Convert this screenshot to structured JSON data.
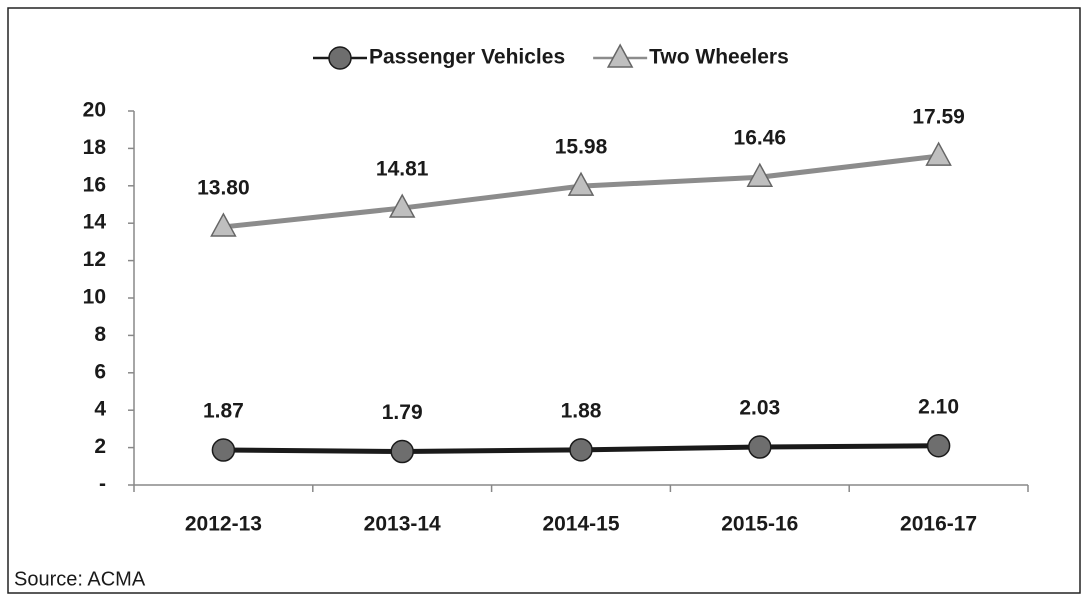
{
  "chart_data": {
    "type": "line",
    "categories": [
      "2012-13",
      "2013-14",
      "2014-15",
      "2015-16",
      "2016-17"
    ],
    "series": [
      {
        "name": "Passenger Vehicles",
        "color": "#1a1a1a",
        "marker_color": "#6e6e6e",
        "marker": "circle",
        "values": [
          1.87,
          1.79,
          1.88,
          2.03,
          2.1
        ],
        "value_labels": [
          "1.87",
          "1.79",
          "1.88",
          "2.03",
          "2.10"
        ]
      },
      {
        "name": "Two Wheelers",
        "color": "#8c8c8c",
        "marker_color": "#bfbfbf",
        "marker": "triangle",
        "values": [
          13.8,
          14.81,
          15.98,
          16.46,
          17.59
        ],
        "value_labels": [
          "13.80",
          "14.81",
          "15.98",
          "16.46",
          "17.59"
        ]
      }
    ],
    "ylim": [
      0,
      20
    ],
    "yticks": [
      {
        "value": 0,
        "label": "-"
      },
      2,
      4,
      6,
      8,
      10,
      12,
      14,
      16,
      18,
      20
    ],
    "legend": "top",
    "source": "Source: ACMA"
  }
}
